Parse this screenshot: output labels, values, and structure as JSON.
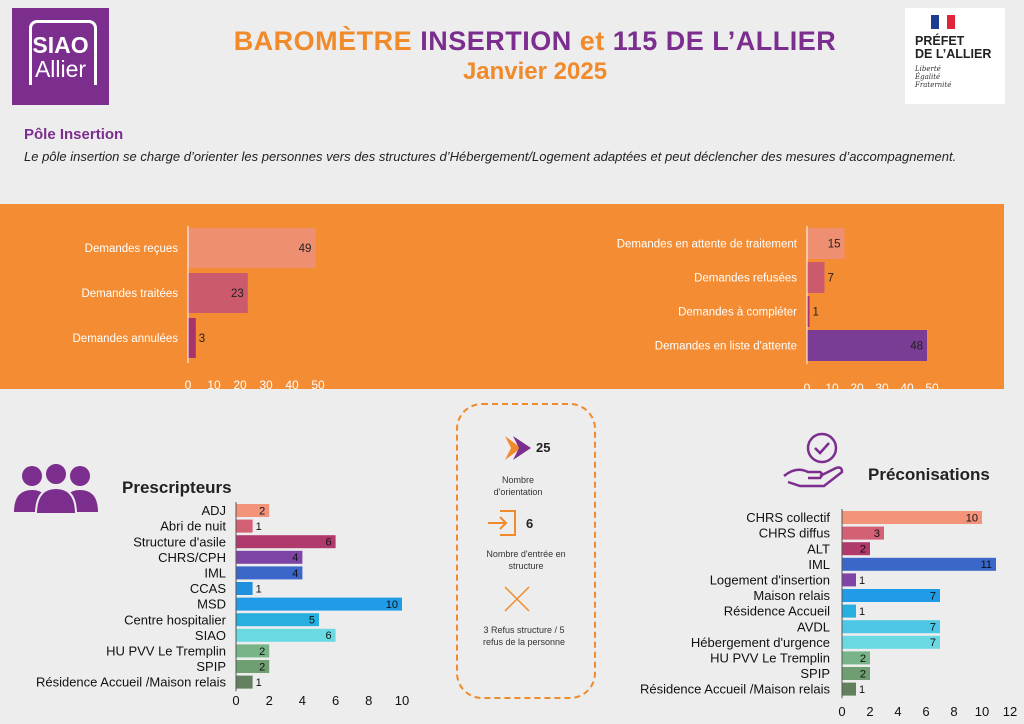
{
  "header": {
    "logo_line1": "SIAO",
    "logo_line2": "Allier",
    "title_part1": "BAROMÈTRE ",
    "title_part2": "INSERTION",
    "title_part3": " et ",
    "title_part4": "115",
    "title_part5": " DE L’ALLIER",
    "subtitle": "Janvier 2025",
    "prefet_line1": "PRÉFET",
    "prefet_line2": "DE L’ALLIER",
    "motto1": "Liberté",
    "motto2": "Égalité",
    "motto3": "Fraternité"
  },
  "pole": {
    "title": "Pôle Insertion",
    "description": "Le pôle insertion se charge d’orienter les personnes vers des structures d’Hébergement/Logement adaptées et peut déclencher des mesures d’accompagnement."
  },
  "center": {
    "orientations_value": "25",
    "orientations_label": "Nombre d'orientation",
    "entrees_value": "6",
    "entrees_label": "Nombre d'entrée en structure",
    "refus_label": "3 Refus structure / 5 refus de la personne"
  },
  "colors": {
    "orange": "#f48c33",
    "purple": "#7b2e8e",
    "salmon": "#ef8f72",
    "rose": "#cc5a6d",
    "magenta": "#a8346c",
    "violet": "#7a3c94"
  },
  "chart_data": [
    {
      "id": "demandes1",
      "type": "bar",
      "orientation": "horizontal",
      "categories": [
        "Demandes reçues",
        "Demandes traitées",
        "Demandes annulées"
      ],
      "values": [
        49,
        23,
        3
      ],
      "colors": [
        "#ef8f72",
        "#cc5a6d",
        "#a8346c"
      ],
      "xlim": [
        0,
        50
      ],
      "ticks": [
        0,
        10,
        20,
        30,
        40,
        50
      ]
    },
    {
      "id": "demandes2",
      "type": "bar",
      "orientation": "horizontal",
      "categories": [
        "Demandes en attente de traitement",
        "Demandes refusées",
        "Demandes à compléter",
        "Demandes en liste d'attente"
      ],
      "values": [
        15,
        7,
        1,
        48
      ],
      "colors": [
        "#ef8f72",
        "#cc5a6d",
        "#a8346c",
        "#7a3c94"
      ],
      "xlim": [
        0,
        50
      ],
      "ticks": [
        0,
        10,
        20,
        30,
        40,
        50
      ]
    },
    {
      "id": "prescripteurs",
      "type": "bar",
      "orientation": "horizontal",
      "title": "Prescripteurs",
      "categories": [
        "ADJ",
        "Abri de nuit",
        "Structure d'asile",
        "CHRS/CPH",
        "IML",
        "CCAS",
        "MSD",
        "Centre hospitalier",
        "SIAO",
        "HU PVV Le Tremplin",
        "SPIP",
        "Résidence Accueil /Maison relais"
      ],
      "values": [
        2,
        1,
        6,
        4,
        4,
        1,
        10,
        5,
        6,
        2,
        2,
        1
      ],
      "colors": [
        "#f2937a",
        "#d46076",
        "#b03a6c",
        "#7e45a6",
        "#3a67c9",
        "#1f8fe0",
        "#1f9be8",
        "#27b0df",
        "#6ad9e2",
        "#78b487",
        "#6e9e72",
        "#627f5e"
      ],
      "xlim": [
        0,
        10
      ],
      "ticks": [
        0,
        2,
        4,
        6,
        8,
        10
      ]
    },
    {
      "id": "preconisations",
      "type": "bar",
      "orientation": "horizontal",
      "title": "Préconisations",
      "categories": [
        "CHRS collectif",
        "CHRS diffus",
        "ALT",
        "IML",
        "Logement d'insertion",
        "Maison relais",
        "Résidence Accueil",
        "AVDL",
        "Hébergement d'urgence",
        "HU PVV Le Tremplin",
        "SPIP",
        "Résidence Accueil /Maison relais"
      ],
      "values": [
        10,
        3,
        2,
        11,
        1,
        7,
        1,
        7,
        7,
        2,
        2,
        1
      ],
      "colors": [
        "#f2937a",
        "#d46076",
        "#b03a6c",
        "#3a67c9",
        "#7e45a6",
        "#1f9be8",
        "#27b0df",
        "#4ec7e6",
        "#6ad9e2",
        "#78b487",
        "#6e9e72",
        "#627f5e"
      ],
      "xlim": [
        0,
        12
      ],
      "ticks": [
        0,
        2,
        4,
        6,
        8,
        10,
        12
      ]
    }
  ]
}
